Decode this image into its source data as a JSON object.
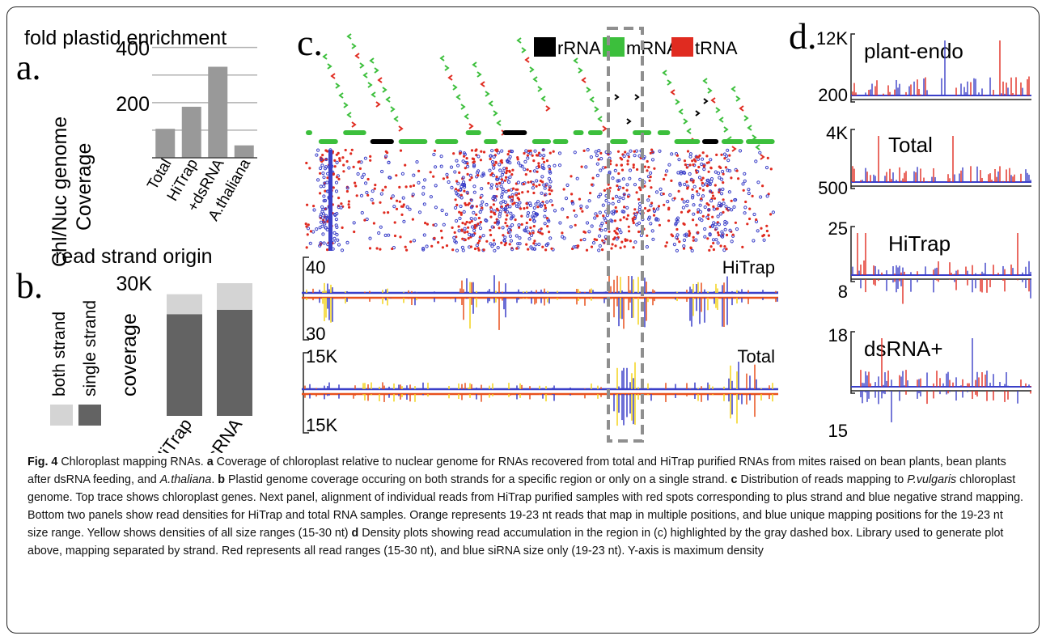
{
  "panel_a": {
    "letter": "a.",
    "title": "fold plastid enrichment",
    "ylabel_line1": "Chl/Nuc genome",
    "ylabel_line2": "Coverage",
    "chart_data": {
      "type": "bar",
      "categories": [
        "Total",
        "HiTrap",
        "+dsRNA",
        "A.thaliana"
      ],
      "values": [
        105,
        185,
        330,
        45
      ],
      "ylim": [
        0,
        440
      ],
      "yticks": [
        200,
        400
      ],
      "ytick_labels": [
        "200",
        "400"
      ],
      "grid": true,
      "bar_color": "#999999"
    }
  },
  "panel_b": {
    "letter": "b.",
    "title": "read strand origin",
    "ylabel": "coverage",
    "legend": [
      {
        "label": "both strand",
        "color": "#d4d4d4"
      },
      {
        "label": "single strand",
        "color": "#636363"
      }
    ],
    "chart_data": {
      "type": "bar",
      "stacked": true,
      "categories": [
        "HiTrap",
        "+dsRNA"
      ],
      "series": [
        {
          "name": "single strand",
          "values": [
            23000,
            24000
          ]
        },
        {
          "name": "both strand",
          "values": [
            4500,
            6000
          ]
        }
      ],
      "ylim": [
        0,
        30000
      ],
      "yticks": [
        30000
      ],
      "ytick_labels": [
        "30K"
      ]
    }
  },
  "panel_c": {
    "letter": "c.",
    "legend": [
      {
        "label": "rRNA",
        "color": "#000000"
      },
      {
        "label": "mRNA",
        "color": "#3cbf3c"
      },
      {
        "label": "tRNA",
        "color": "#e02b20"
      }
    ],
    "hitrap": {
      "label": "HiTrap",
      "top": "40",
      "bottom": "30"
    },
    "total": {
      "label": "Total",
      "top": "15K",
      "bottom": "15K"
    }
  },
  "panel_d": {
    "letter": "d.",
    "plots": [
      {
        "label": "plant-endo",
        "top": "12K",
        "bottom": "200"
      },
      {
        "label": "Total",
        "top": "4K",
        "bottom": "500"
      },
      {
        "label": "HiTrap",
        "top": "25",
        "bottom": "8"
      },
      {
        "label": "dsRNA+",
        "top": "18",
        "bottom": "15"
      }
    ]
  },
  "caption": {
    "fig": "Fig. 4",
    "title": " Chloroplast mapping RNAs. ",
    "a": "a",
    "a_text": " Coverage of chloroplast relative to nuclear genome for RNAs recovered from total and HiTrap purified RNAs from mites raised on bean plants, bean plants after dsRNA feeding, and ",
    "a_species": "A.thaliana",
    "a_end": ". ",
    "b": "b",
    "b_text": " Plastid genome coverage occuring on both strands for a specific region or only on a single strand. ",
    "c": "c",
    "c_text1": " Distribution of reads mapping to ",
    "c_species": "P.vulgaris",
    "c_text2": " chloroplast genome. Top trace shows chloroplast genes. Next panel, alignment of individual reads from HiTrap purified samples with red spots corresponding to plus strand and blue negative strand mapping. Bottom two panels show read densities for HiTrap and total RNA samples. Orange represents 19-23 nt reads that map in multiple positions, and blue unique mapping positions for the 19-23 nt size range. Yellow shows densities of all size ranges (15-30 nt) ",
    "d": "d",
    "d_text": " Density plots showing read accumulation in the region in (c) highlighted by the gray dashed box. Library used to generate plot above, mapping separated by strand. Red represents all read ranges (15-30 nt), and blue siRNA size only (19-23 nt). Y-axis is maximum density"
  }
}
